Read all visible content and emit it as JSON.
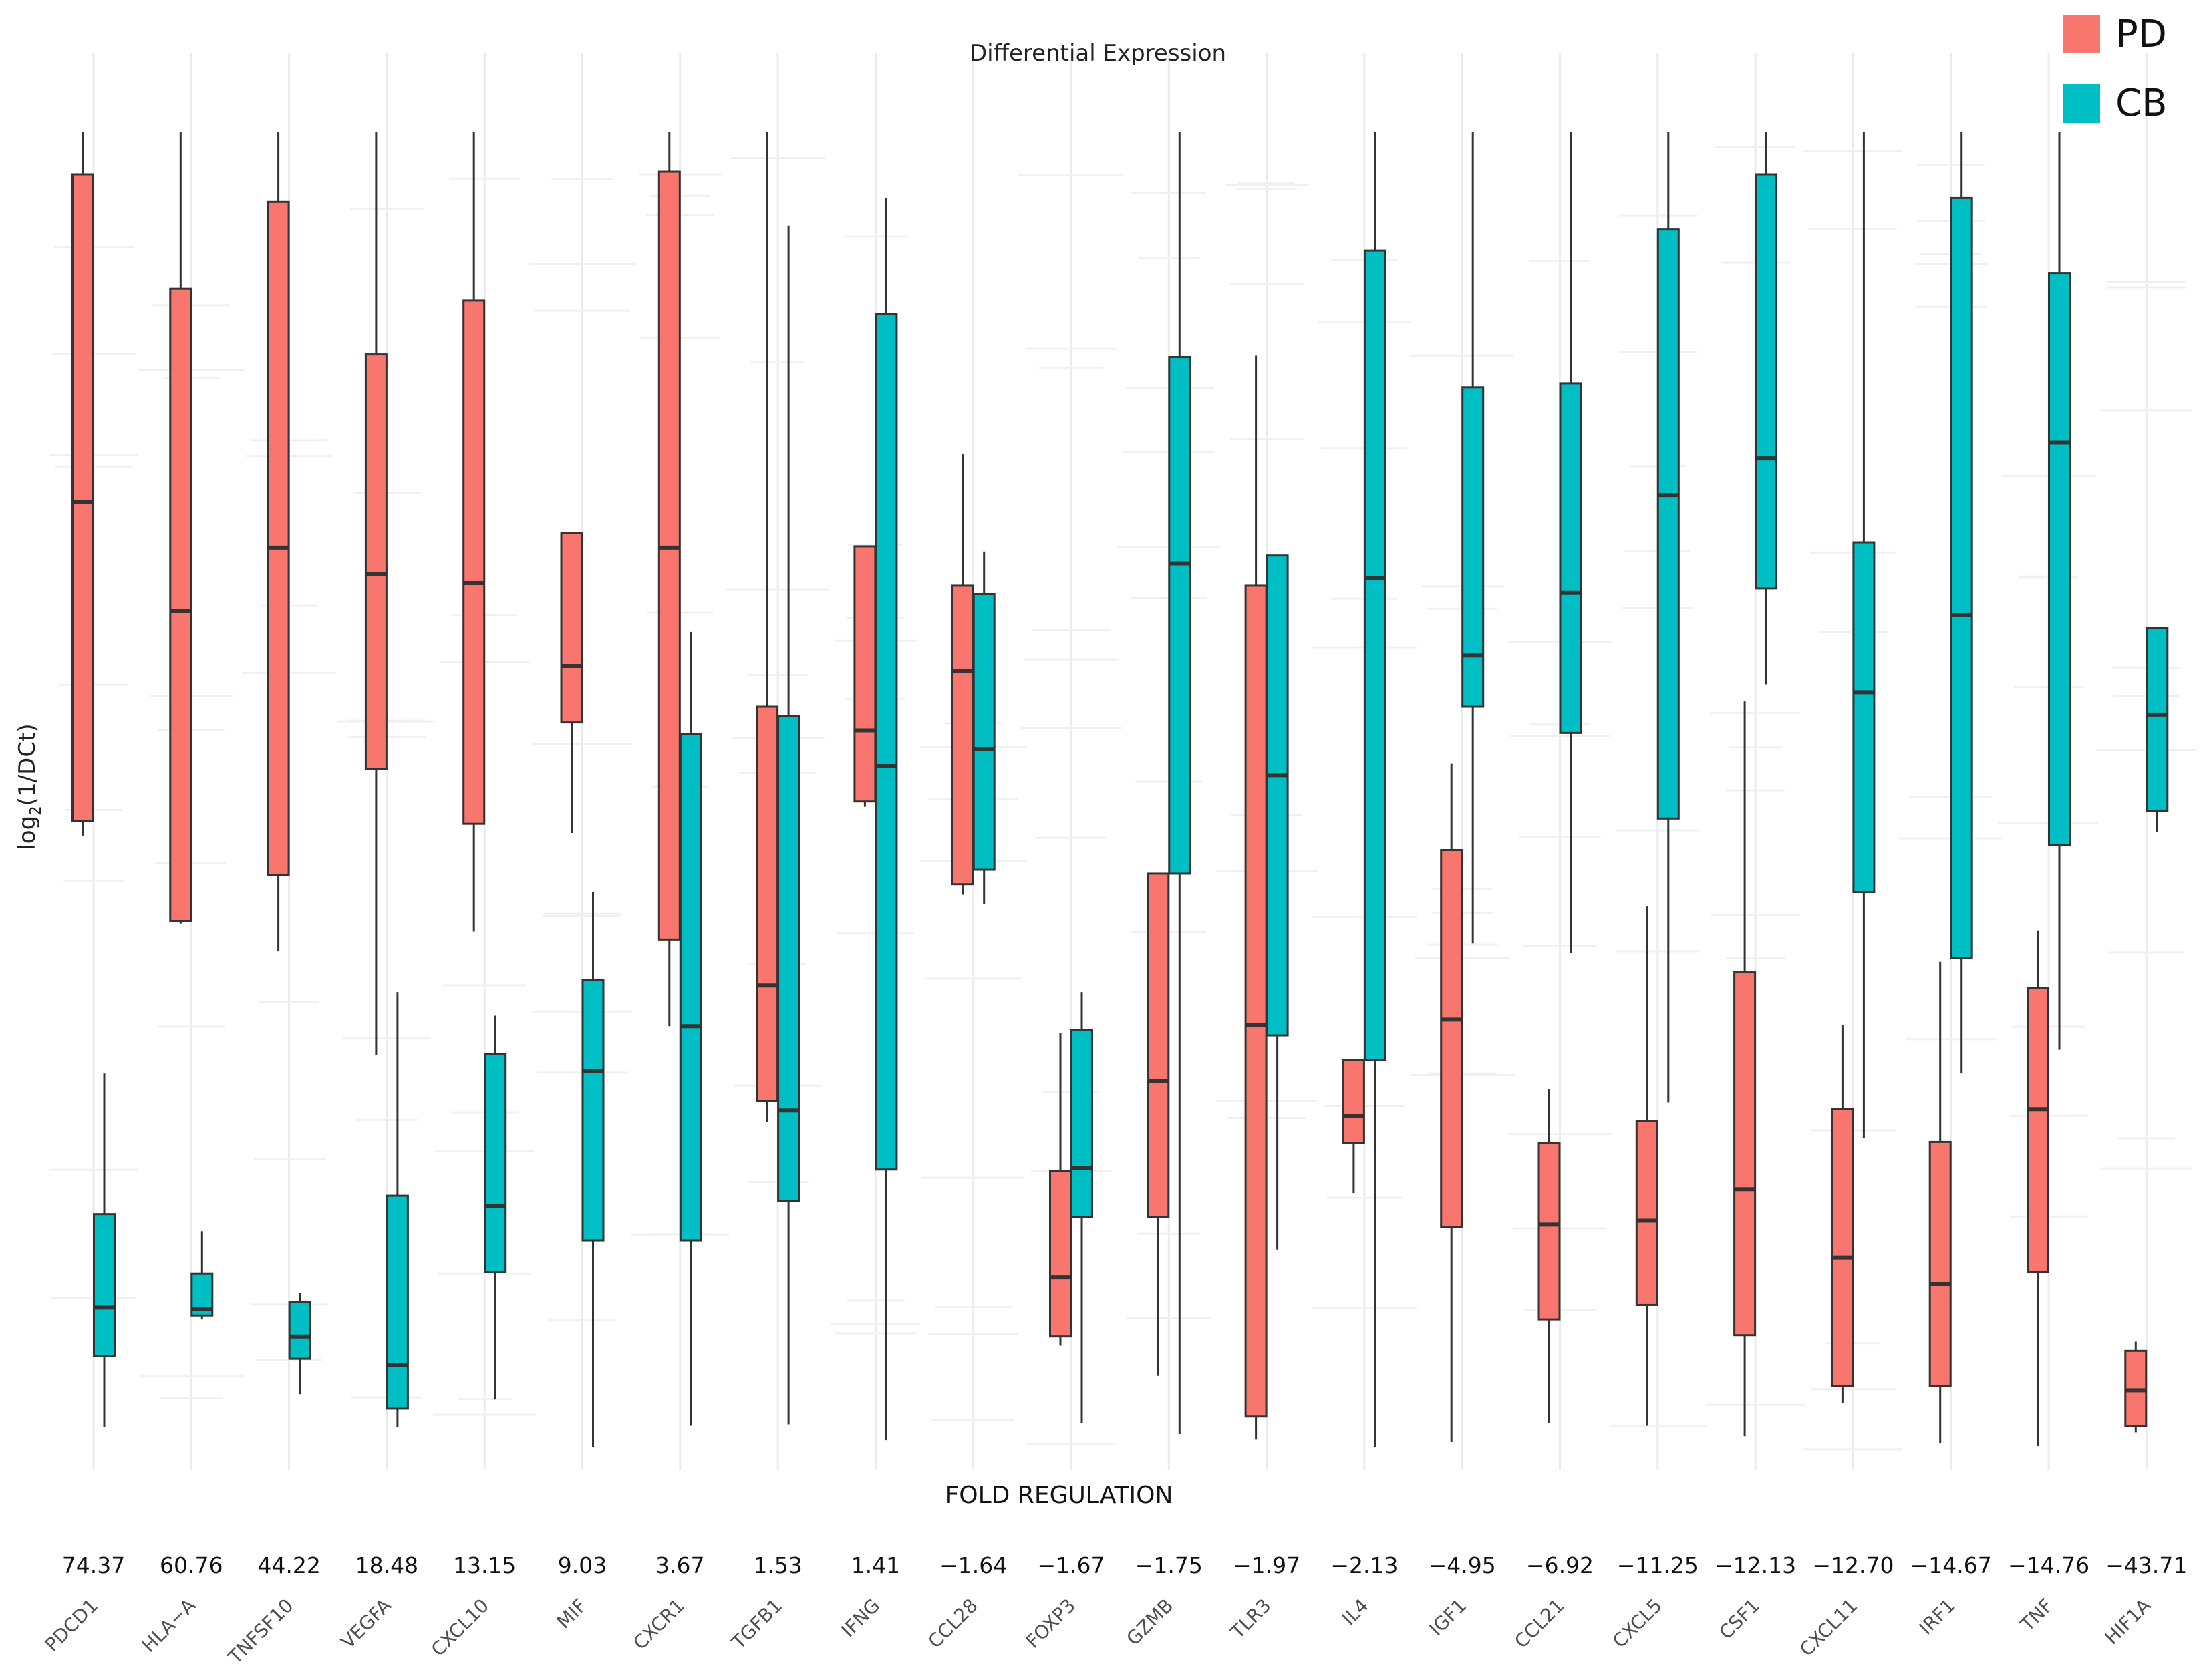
{
  "chart_data": {
    "type": "boxplot",
    "title": "Differential Expression",
    "ylabel_main": "log",
    "ylabel_sub": "2",
    "ylabel_rest": "(1/DCt)",
    "xlabel": "FOLD REGULATION",
    "ylim": [
      0,
      1
    ],
    "grid": true,
    "legend": {
      "position": "top-right",
      "entries": [
        {
          "name": "PD",
          "color": "#F8766D"
        },
        {
          "name": "CB",
          "color": "#00BFC4"
        }
      ]
    },
    "genes": [
      {
        "name": "PDCD1",
        "fold": "74.37",
        "PD": [
          0.465,
          0.476,
          0.719,
          0.968,
          1.0
        ],
        "CB": [
          0.015,
          0.069,
          0.106,
          0.177,
          0.284
        ]
      },
      {
        "name": "HLA−A",
        "fold": "60.76",
        "PD": [
          0.398,
          0.4,
          0.636,
          0.881,
          1.0
        ],
        "CB": [
          0.097,
          0.1,
          0.105,
          0.132,
          0.164
        ]
      },
      {
        "name": "TNFSF10",
        "fold": "44.22",
        "PD": [
          0.377,
          0.435,
          0.684,
          0.947,
          1.0
        ],
        "CB": [
          0.04,
          0.067,
          0.084,
          0.11,
          0.117
        ]
      },
      {
        "name": "VEGFA",
        "fold": "18.48",
        "PD": [
          0.298,
          0.516,
          0.664,
          0.831,
          1.0
        ],
        "CB": [
          0.015,
          0.029,
          0.062,
          0.191,
          0.346
        ]
      },
      {
        "name": "CXCL10",
        "fold": "13.15",
        "PD": [
          0.392,
          0.474,
          0.657,
          0.872,
          1.0
        ],
        "CB": [
          0.036,
          0.133,
          0.183,
          0.299,
          0.328
        ]
      },
      {
        "name": "MIF",
        "fold": "9.03",
        "PD": [
          0.467,
          0.551,
          0.594,
          0.695,
          0.695
        ],
        "CB": [
          0.0,
          0.157,
          0.286,
          0.355,
          0.422
        ]
      },
      {
        "name": "CXCR1",
        "fold": "3.67",
        "PD": [
          0.32,
          0.386,
          0.684,
          0.97,
          1.0
        ],
        "CB": [
          0.016,
          0.157,
          0.32,
          0.542,
          0.62
        ]
      },
      {
        "name": "TGFB1",
        "fold": "1.53",
        "PD": [
          0.247,
          0.263,
          0.351,
          0.563,
          1.0
        ],
        "CB": [
          0.017,
          0.187,
          0.256,
          0.556,
          0.929
        ]
      },
      {
        "name": "IFNG",
        "fold": "1.41",
        "PD": [
          0.487,
          0.491,
          0.545,
          0.685,
          0.685
        ],
        "CB": [
          0.005,
          0.211,
          0.518,
          0.862,
          0.95
        ]
      },
      {
        "name": "CCL28",
        "fold": "−1.64",
        "PD": [
          0.42,
          0.428,
          0.59,
          0.655,
          0.755
        ],
        "CB": [
          0.413,
          0.439,
          0.531,
          0.649,
          0.681
        ]
      },
      {
        "name": "FOXP3",
        "fold": "−1.67",
        "PD": [
          0.077,
          0.084,
          0.129,
          0.21,
          0.315
        ],
        "CB": [
          0.018,
          0.175,
          0.212,
          0.317,
          0.346
        ]
      },
      {
        "name": "GZMB",
        "fold": "−1.75",
        "PD": [
          0.054,
          0.175,
          0.278,
          0.436,
          0.436
        ],
        "CB": [
          0.01,
          0.436,
          0.672,
          0.829,
          1.0
        ]
      },
      {
        "name": "TLR3",
        "fold": "−1.97",
        "PD": [
          0.006,
          0.023,
          0.321,
          0.655,
          0.83
        ],
        "CB": [
          0.15,
          0.313,
          0.511,
          0.678,
          0.678
        ]
      },
      {
        "name": "IL4",
        "fold": "−2.13",
        "PD": [
          0.193,
          0.231,
          0.252,
          0.294,
          0.294
        ],
        "CB": [
          0.0,
          0.294,
          0.661,
          0.91,
          1.0
        ]
      },
      {
        "name": "IGF1",
        "fold": "−4.95",
        "PD": [
          0.004,
          0.167,
          0.325,
          0.454,
          0.52
        ],
        "CB": [
          0.383,
          0.563,
          0.602,
          0.806,
          1.0
        ]
      },
      {
        "name": "CCL21",
        "fold": "−6.92",
        "PD": [
          0.018,
          0.097,
          0.169,
          0.231,
          0.272
        ],
        "CB": [
          0.376,
          0.543,
          0.65,
          0.809,
          1.0
        ]
      },
      {
        "name": "CXCL5",
        "fold": "−11.25",
        "PD": [
          0.016,
          0.108,
          0.172,
          0.248,
          0.411
        ],
        "CB": [
          0.262,
          0.478,
          0.724,
          0.926,
          1.0
        ]
      },
      {
        "name": "CSF1",
        "fold": "−12.13",
        "PD": [
          0.008,
          0.085,
          0.196,
          0.361,
          0.567
        ],
        "CB": [
          0.58,
          0.653,
          0.752,
          0.968,
          1.0
        ]
      },
      {
        "name": "CXCL11",
        "fold": "−12.70",
        "PD": [
          0.033,
          0.046,
          0.144,
          0.257,
          0.321
        ],
        "CB": [
          0.235,
          0.422,
          0.574,
          0.688,
          1.0
        ]
      },
      {
        "name": "IRF1",
        "fold": "−14.67",
        "PD": [
          0.003,
          0.046,
          0.124,
          0.232,
          0.369
        ],
        "CB": [
          0.284,
          0.372,
          0.633,
          0.95,
          1.0
        ]
      },
      {
        "name": "TNF",
        "fold": "−14.76",
        "PD": [
          0.001,
          0.133,
          0.257,
          0.349,
          0.393
        ],
        "CB": [
          0.302,
          0.458,
          0.764,
          0.893,
          1.0
        ]
      },
      {
        "name": "HIF1A",
        "fold": "−43.71",
        "PD": [
          0.011,
          0.016,
          0.043,
          0.073,
          0.08
        ],
        "CB": [
          0.468,
          0.484,
          0.557,
          0.623,
          0.623
        ]
      }
    ]
  }
}
